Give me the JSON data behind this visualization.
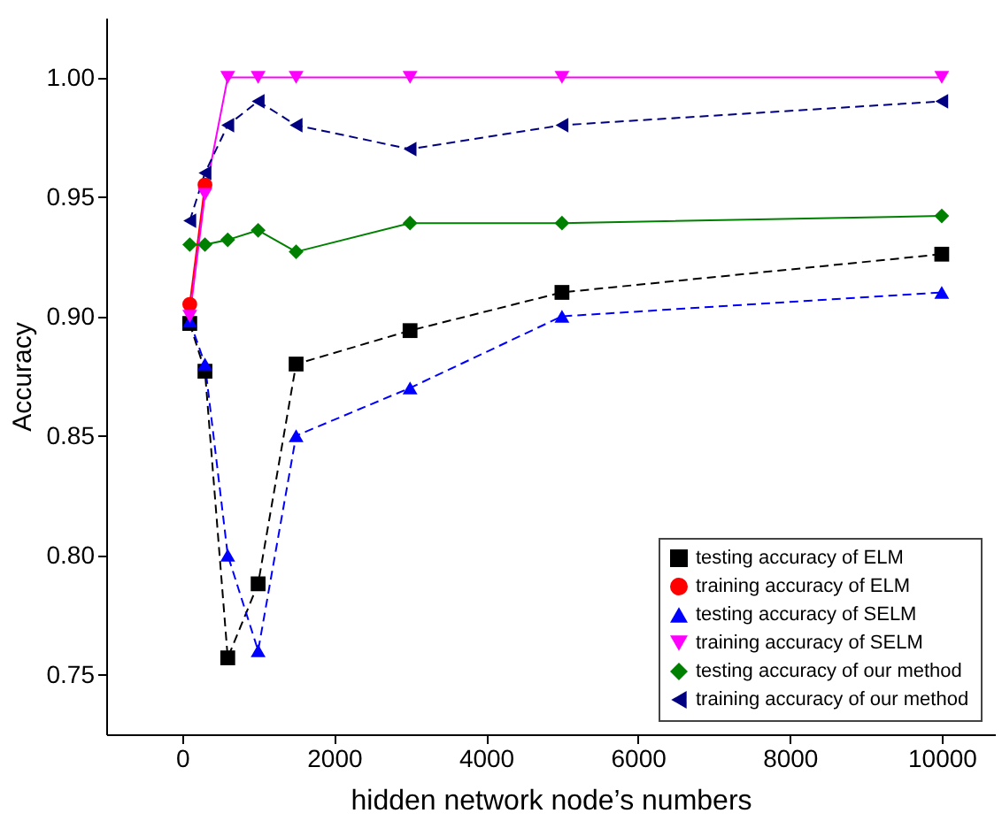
{
  "chart_data": {
    "type": "line",
    "xlabel": "hidden network node’s numbers",
    "ylabel": "Accuracy",
    "x": [
      100,
      300,
      600,
      1000,
      1500,
      3000,
      5000,
      10000
    ],
    "series": [
      {
        "name": "testing accuracy of ELM",
        "color": "#000000",
        "marker": "square",
        "line_style": "dashed",
        "values": [
          0.897,
          0.877,
          0.757,
          0.788,
          0.88,
          0.894,
          0.91,
          0.926
        ]
      },
      {
        "name": "training accuracy of ELM",
        "color": "#ff0000",
        "marker": "circle",
        "line_style": "solid",
        "values": [
          0.905,
          0.955,
          null,
          null,
          null,
          null,
          null,
          null
        ]
      },
      {
        "name": "testing accuracy of SELM",
        "color": "#0000ff",
        "marker": "triangle",
        "line_style": "dashed",
        "values": [
          0.898,
          0.88,
          0.8,
          0.76,
          0.85,
          0.87,
          0.9,
          0.91
        ]
      },
      {
        "name": "training accuracy of SELM",
        "color": "#ff00ff",
        "marker": "triangle-down",
        "line_style": "solid",
        "values": [
          0.9,
          0.951,
          1.0,
          1.0,
          1.0,
          1.0,
          1.0,
          1.0
        ]
      },
      {
        "name": "testing accuracy of our method",
        "color": "#008000",
        "marker": "diamond",
        "line_style": "solid",
        "values": [
          0.93,
          0.93,
          0.932,
          0.936,
          0.927,
          0.939,
          0.939,
          0.942
        ]
      },
      {
        "name": "training accuracy of our method",
        "color": "#000080",
        "marker": "triangle-left",
        "line_style": "dashed",
        "values": [
          0.94,
          0.96,
          0.98,
          0.99,
          0.98,
          0.97,
          0.98,
          0.99
        ]
      }
    ],
    "xlim": [
      -1000,
      10700
    ],
    "xticks": [
      0,
      2000,
      4000,
      6000,
      8000,
      10000
    ],
    "ylim": [
      0.725,
      1.025
    ],
    "yticks": [
      {
        "value": 0.75,
        "label": "0.75"
      },
      {
        "value": 0.8,
        "label": "0.80"
      },
      {
        "value": 0.85,
        "label": "0.85"
      },
      {
        "value": 0.9,
        "label": "0.90"
      },
      {
        "value": 0.95,
        "label": "0.95"
      },
      {
        "value": 1.0,
        "label": "1.00"
      }
    ],
    "grid": false,
    "legend": "bottom right"
  }
}
